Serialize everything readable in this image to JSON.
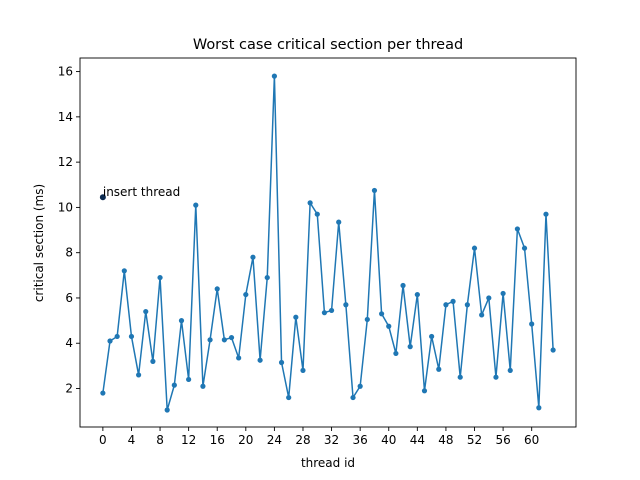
{
  "chart_data": {
    "type": "line",
    "title": "Worst case critical section per thread",
    "xlabel": "thread id",
    "ylabel": "critical section (ms)",
    "xlim": [
      -3.2,
      66.2
    ],
    "ylim": [
      0.3,
      16.6
    ],
    "xticks": [
      0,
      4,
      8,
      12,
      16,
      20,
      24,
      28,
      32,
      36,
      40,
      44,
      48,
      52,
      56,
      60
    ],
    "yticks": [
      2,
      4,
      6,
      8,
      10,
      12,
      14,
      16
    ],
    "grid": false,
    "line_color": "#1f77b4",
    "series": [
      {
        "x": [
          0,
          1,
          2,
          3,
          4,
          5,
          6,
          7,
          8,
          9,
          10,
          11,
          12,
          13,
          14,
          15,
          16,
          17,
          18,
          19,
          20,
          21,
          22,
          23,
          24,
          25,
          26,
          27,
          28,
          29,
          30,
          31,
          32,
          33,
          34,
          35,
          36,
          37,
          38,
          39,
          40,
          41,
          42,
          43,
          44,
          45,
          46,
          47,
          48,
          49,
          50,
          51,
          52,
          53,
          54,
          55,
          56,
          57,
          58,
          59,
          60,
          61,
          62,
          63
        ],
        "values": [
          1.8,
          4.1,
          4.3,
          7.2,
          4.3,
          2.6,
          5.4,
          3.2,
          6.9,
          1.05,
          2.15,
          5.0,
          2.4,
          10.1,
          2.1,
          4.15,
          6.4,
          4.15,
          4.25,
          3.35,
          6.15,
          7.8,
          3.25,
          6.9,
          15.8,
          3.15,
          1.6,
          5.15,
          2.8,
          10.2,
          9.7,
          5.35,
          5.45,
          9.35,
          5.7,
          1.6,
          2.1,
          5.05,
          10.75,
          5.3,
          4.75,
          3.55,
          6.55,
          3.85,
          6.15,
          1.9,
          4.3,
          2.85,
          5.7,
          5.85,
          2.5,
          5.7,
          8.2,
          5.25,
          6.0,
          2.5,
          6.2,
          2.8,
          9.05,
          8.2,
          4.85,
          1.15,
          9.7,
          3.7
        ]
      }
    ],
    "annotation": {
      "text": "insert thread",
      "x": 0,
      "y": 10.45,
      "marker_color": "#0b2a50"
    }
  }
}
